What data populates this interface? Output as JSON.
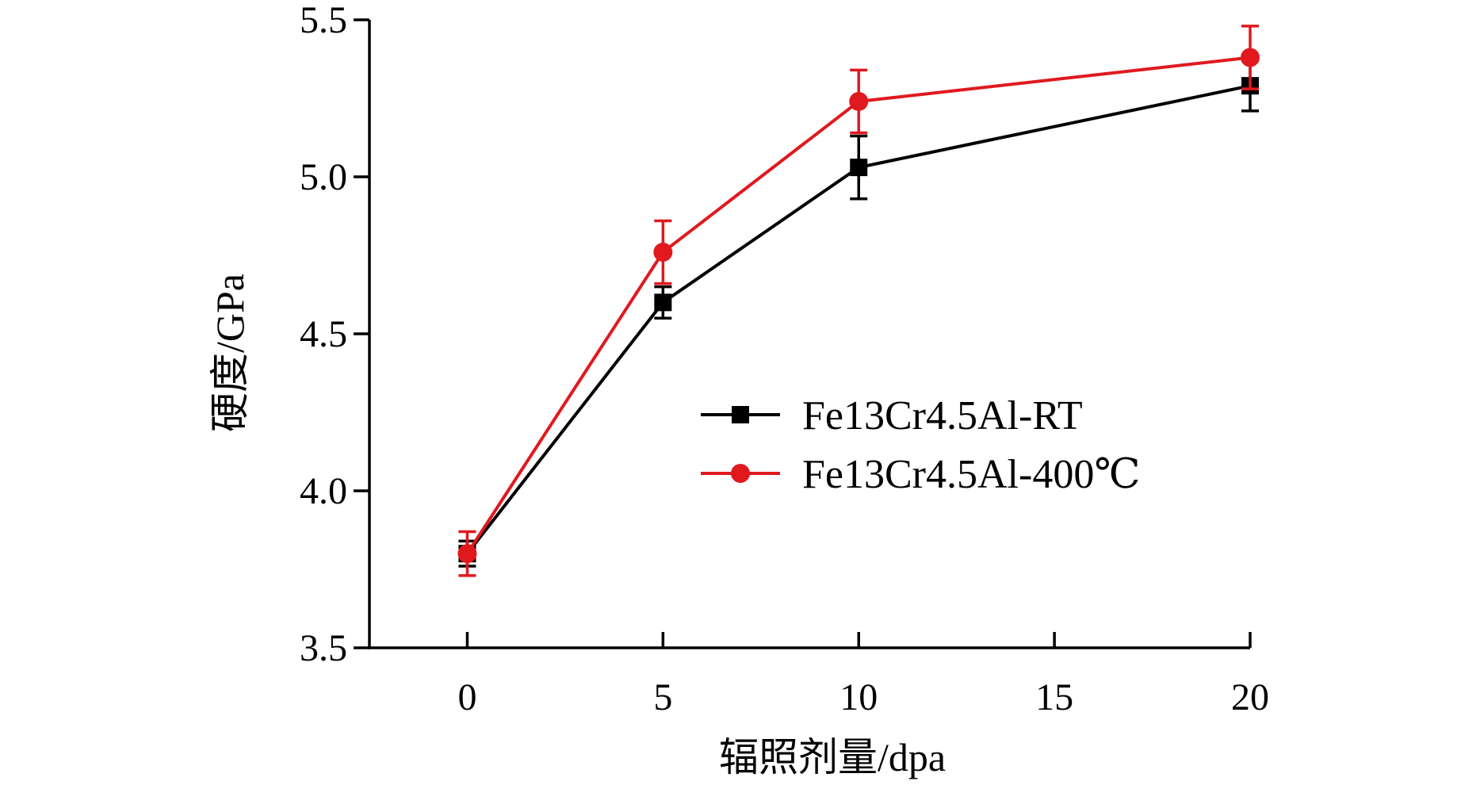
{
  "chart_data": {
    "type": "line",
    "xlabel": "辐照剂量/dpa",
    "ylabel": "硬度/GPa",
    "xlim": [
      -2.5,
      20
    ],
    "ylim": [
      3.5,
      5.5
    ],
    "x_ticks": [
      0,
      5,
      10,
      15,
      20
    ],
    "x_tick_labels": [
      "0",
      "5",
      "10",
      "15",
      "20"
    ],
    "y_ticks": [
      3.5,
      4.0,
      4.5,
      5.0,
      5.5
    ],
    "y_tick_labels": [
      "3.5",
      "4.0",
      "4.5",
      "5.0",
      "5.5"
    ],
    "grid": false,
    "legend_position": "center-right",
    "series": [
      {
        "name": "Fe13Cr4.5Al-RT",
        "color": "#000000",
        "marker": "square",
        "x": [
          0,
          5,
          10,
          20
        ],
        "y": [
          3.8,
          4.6,
          5.03,
          5.29
        ],
        "error": [
          0.04,
          0.05,
          0.1,
          0.08
        ]
      },
      {
        "name": "Fe13Cr4.5Al-400℃",
        "color": "#e0191f",
        "marker": "circle",
        "x": [
          0,
          5,
          10,
          20
        ],
        "y": [
          3.8,
          4.76,
          5.24,
          5.38
        ],
        "error": [
          0.07,
          0.1,
          0.1,
          0.1
        ]
      }
    ]
  }
}
